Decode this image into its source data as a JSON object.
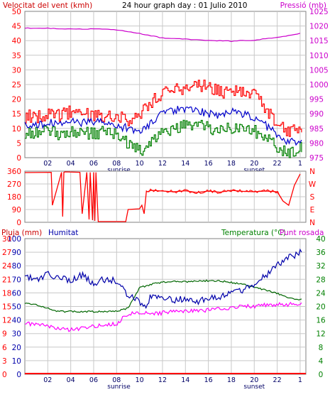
{
  "header": {
    "wind_label": "Velocitat del vent (kmh)",
    "title": "24 hour graph day : 01 Julio 2010",
    "pressure_label": "Pressió (mb)"
  },
  "colors": {
    "wind_gust": "#ff0000",
    "wind_avg": "#0000cc",
    "wind_min": "#008000",
    "pressure": "#cc00cc",
    "direction": "#ff0000",
    "rain": "#ff0000",
    "humidity": "#0000aa",
    "temperature": "#006600",
    "dewpoint": "#ff00ff",
    "left_axis": "#ff0000",
    "hum_axis": "#0000aa",
    "right_axis": "#008000",
    "press_axis": "#cc00cc",
    "grid": "#c8c8c8"
  },
  "time_axis": {
    "ticks": [
      "02",
      "04",
      "06",
      "08",
      "10",
      "12",
      "14",
      "16",
      "18",
      "20",
      "22",
      "1"
    ],
    "sunrise_label": "sunrise",
    "sunset_label": "sunset",
    "sunrise_hour": 8.2,
    "sunset_hour": 20.0
  },
  "chart_data": [
    {
      "type": "line",
      "name": "wind-pressure",
      "x_range": [
        0,
        24.5
      ],
      "ylim": [
        0,
        50
      ],
      "y2lim": [
        975,
        1025
      ],
      "y_ticks": [
        0,
        5,
        10,
        15,
        20,
        25,
        30,
        35,
        40,
        45,
        50
      ],
      "y2_ticks": [
        975,
        980,
        985,
        990,
        995,
        1000,
        1005,
        1010,
        1015,
        1020,
        1025
      ],
      "series": [
        {
          "key": "gust",
          "x": [
            0,
            1,
            2,
            3,
            4,
            5,
            6,
            7,
            8,
            9,
            10,
            11,
            12,
            13,
            14,
            15,
            16,
            17,
            18,
            19,
            20,
            21,
            22,
            23,
            24
          ],
          "values": [
            14,
            14,
            15,
            14,
            16,
            15,
            15,
            14,
            15,
            13,
            15,
            19,
            22,
            23,
            24,
            25,
            24,
            22,
            24,
            22,
            22,
            17,
            12,
            9,
            10
          ]
        },
        {
          "key": "avg",
          "x": [
            0,
            1,
            2,
            3,
            4,
            5,
            6,
            7,
            8,
            9,
            10,
            11,
            12,
            13,
            14,
            15,
            16,
            17,
            18,
            19,
            20,
            21,
            22,
            23,
            24
          ],
          "values": [
            11,
            11,
            12,
            12,
            13,
            12,
            12,
            12,
            11,
            10,
            9,
            12,
            15,
            16,
            17,
            16,
            15,
            14,
            16,
            15,
            14,
            11,
            8,
            5,
            6
          ]
        },
        {
          "key": "min",
          "x": [
            0,
            1,
            2,
            3,
            4,
            5,
            6,
            7,
            8,
            9,
            10,
            11,
            12,
            13,
            14,
            15,
            16,
            17,
            18,
            19,
            20,
            21,
            22,
            23,
            24
          ],
          "values": [
            8,
            9,
            9,
            8,
            9,
            9,
            8,
            9,
            8,
            5,
            2,
            6,
            8,
            10,
            11,
            11,
            10,
            9,
            10,
            11,
            9,
            7,
            3,
            2,
            3
          ]
        },
        {
          "key": "pressure",
          "axis": "y2",
          "x": [
            0,
            2,
            4,
            6,
            8,
            10,
            12,
            14,
            16,
            18,
            20,
            22,
            24
          ],
          "values": [
            1019.3,
            1019.2,
            1019.0,
            1019.0,
            1018.7,
            1017.4,
            1015.9,
            1015.5,
            1015.1,
            1014.8,
            1015.2,
            1016.1,
            1017.4
          ]
        }
      ]
    },
    {
      "type": "line",
      "name": "wind-direction",
      "x_range": [
        0,
        24.5
      ],
      "ylim": [
        0,
        360
      ],
      "y_ticks": [
        0,
        90,
        180,
        270,
        360
      ],
      "direction_labels": [
        "N",
        "W",
        "S",
        "E",
        "N"
      ],
      "series": [
        {
          "key": "direction",
          "x": [
            0,
            2.3,
            2.4,
            3.2,
            3.3,
            3.4,
            3.5,
            4.8,
            5.0,
            5.4,
            5.6,
            5.7,
            5.9,
            6.0,
            6.1,
            6.2,
            6.4,
            7.0,
            8.0,
            8.8,
            9.0,
            10.0,
            10.2,
            10.4,
            10.6,
            10.7,
            11.0,
            12,
            13,
            14,
            15,
            16,
            17,
            18,
            19,
            20,
            21,
            22,
            22.5,
            23,
            23.5,
            24
          ],
          "values": [
            350,
            352,
            120,
            352,
            40,
            352,
            355,
            352,
            60,
            352,
            20,
            352,
            15,
            352,
            10,
            352,
            5,
            5,
            5,
            5,
            90,
            95,
            120,
            60,
            220,
            215,
            225,
            220,
            215,
            222,
            210,
            220,
            212,
            225,
            218,
            215,
            220,
            215,
            150,
            120,
            260,
            340
          ]
        }
      ]
    },
    {
      "type": "line",
      "name": "rain-humidity-temperature",
      "x_range": [
        0,
        24.5
      ],
      "ylim": [
        0,
        100
      ],
      "y_ticks": [
        0,
        10,
        20,
        30,
        40,
        50,
        60,
        70,
        80,
        90,
        100
      ],
      "rain_ticks": [
        0,
        3,
        6,
        9,
        12,
        15,
        18,
        21,
        24,
        27,
        30
      ],
      "y2lim": [
        0,
        40
      ],
      "y2_ticks": [
        0,
        4,
        8,
        12,
        16,
        20,
        24,
        28,
        32,
        36,
        40
      ],
      "series": [
        {
          "key": "rain",
          "x": [
            0,
            24.5
          ],
          "values": [
            0,
            0
          ]
        },
        {
          "key": "humidity",
          "x": [
            0,
            1,
            2,
            3,
            4,
            5,
            6,
            7,
            8,
            9,
            10,
            10.5,
            11,
            12,
            13,
            14,
            15,
            16,
            17,
            18,
            19,
            20,
            21,
            22,
            23,
            24
          ],
          "values": [
            72,
            70,
            74,
            71,
            69,
            73,
            67,
            70,
            69,
            58,
            54,
            48,
            58,
            56,
            55,
            55,
            54,
            56,
            57,
            60,
            62,
            66,
            73,
            80,
            86,
            90
          ]
        },
        {
          "key": "temperature",
          "axis": "y2",
          "x": [
            0,
            1,
            2,
            3,
            4,
            5,
            6,
            7,
            8,
            9,
            10,
            11,
            12,
            13,
            14,
            15,
            16,
            17,
            18,
            19,
            20,
            21,
            22,
            23,
            24
          ],
          "values": [
            21,
            20.5,
            19.5,
            18.5,
            18.5,
            18.5,
            18.5,
            18.5,
            18.7,
            19.5,
            25.5,
            26.5,
            27.2,
            27.4,
            27.3,
            27.5,
            27.6,
            27.5,
            27.1,
            26.6,
            25.8,
            24.8,
            23.8,
            22.6,
            22
          ]
        },
        {
          "key": "dewpoint",
          "axis": "y2",
          "x": [
            0,
            1,
            2,
            3,
            4,
            5,
            6,
            7,
            8,
            8.5,
            9,
            10,
            11,
            12,
            13,
            14,
            15,
            16,
            17,
            18,
            19,
            20,
            21,
            22,
            23,
            24
          ],
          "values": [
            15,
            14.6,
            14.2,
            13.7,
            13.1,
            13.6,
            14.2,
            14.7,
            14.8,
            16.5,
            17.8,
            18.3,
            17.8,
            18.1,
            18.6,
            18.6,
            18.6,
            18.9,
            19.2,
            19.7,
            20.1,
            20.1,
            20.4,
            20.6,
            20.6,
            20.8
          ]
        }
      ]
    }
  ],
  "panel3": {
    "rain_label": "Pluja (mm)",
    "humidity_label": "Humitat",
    "temperature_label": "Temperatura (°C)",
    "dewpoint_label": "Punt rosada"
  }
}
